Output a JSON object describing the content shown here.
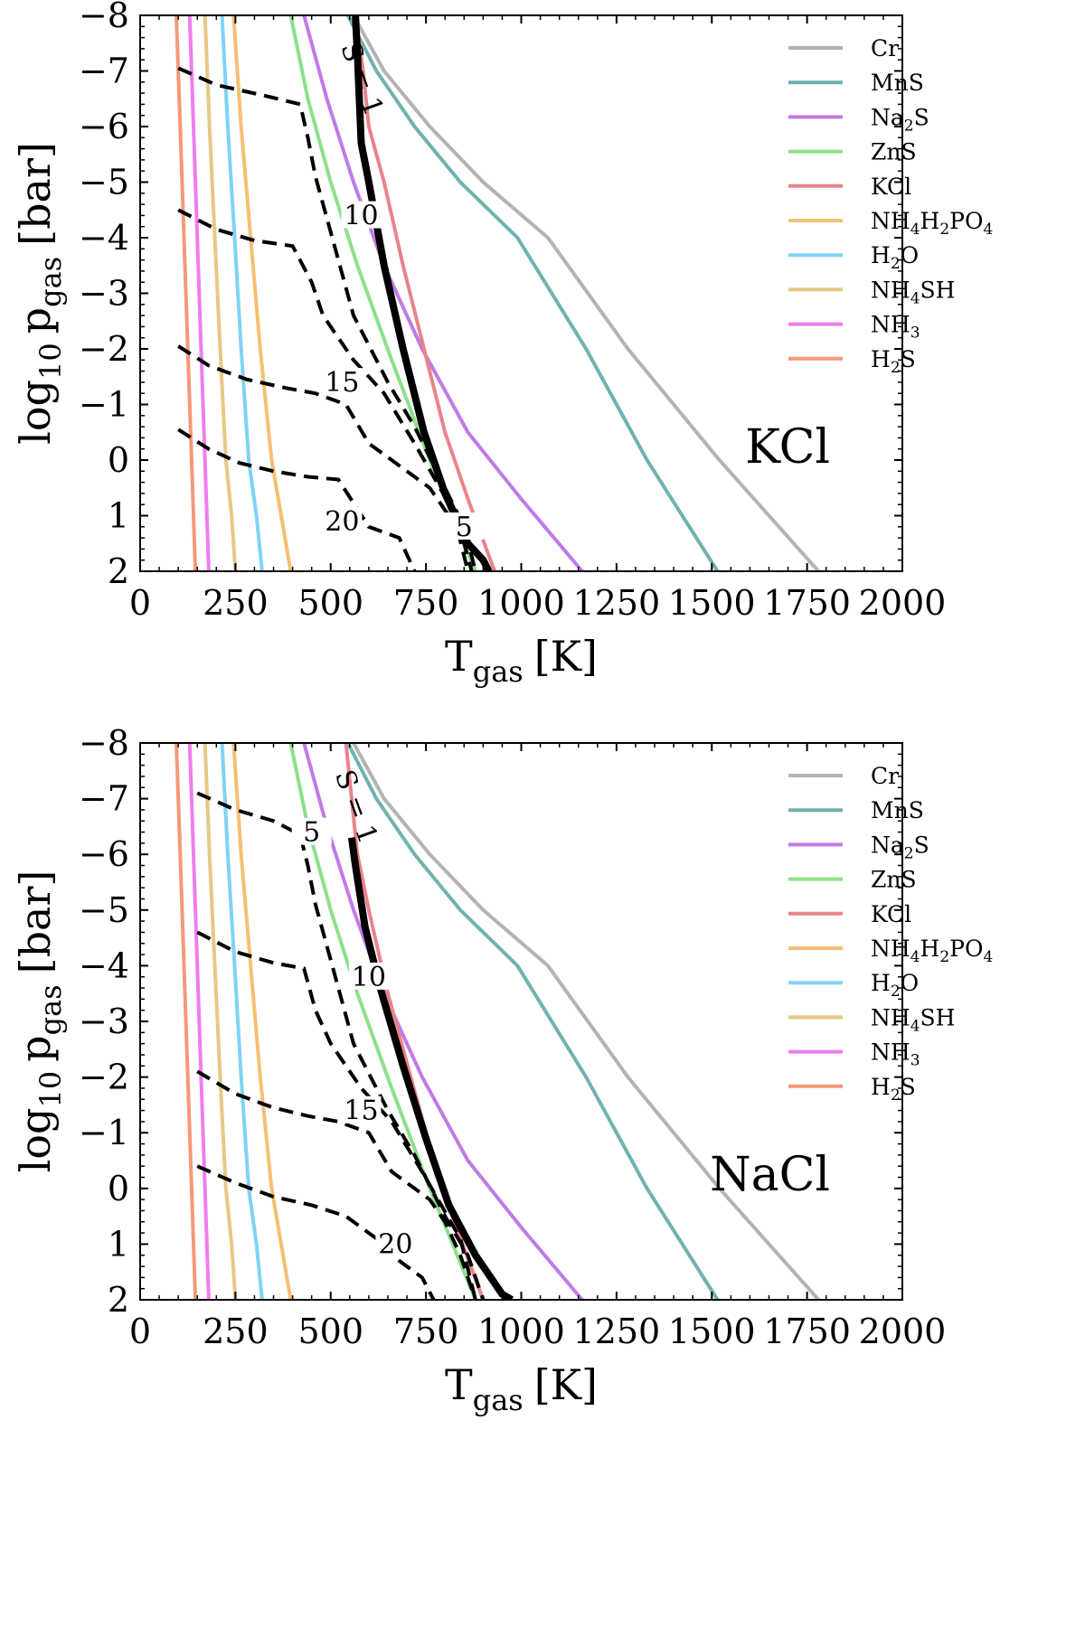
{
  "chart_data": [
    {
      "type": "line",
      "panel_label": "KCl",
      "xlabel": {
        "main": "T",
        "sub": "gas",
        "unit": "[K]"
      },
      "ylabel": {
        "main": "log",
        "base": "10",
        "var": "p",
        "sub": "gas",
        "unit": "[bar]"
      },
      "xlim": [
        0,
        2000
      ],
      "ylim": [
        2,
        -8
      ],
      "xticks": [
        "0",
        "250",
        "500",
        "750",
        "1000",
        "1250",
        "1500",
        "1750",
        "2000"
      ],
      "yticks": [
        "−8",
        "−7",
        "−6",
        "−5",
        "−4",
        "−3",
        "−2",
        "−1",
        "0",
        "1",
        "2"
      ],
      "legend_position": "upper right",
      "series": [
        {
          "name": "Cr",
          "name_parts": [
            "Cr"
          ],
          "color": "#b3b3b3",
          "x": [
            560,
            640,
            760,
            900,
            1070,
            1280,
            1520,
            1780
          ],
          "y": [
            -8,
            -7,
            -6,
            -5,
            -4,
            -2,
            0,
            2
          ]
        },
        {
          "name": "MnS",
          "name_parts": [
            "MnS"
          ],
          "color": "#6fb3b0",
          "x": [
            545,
            620,
            720,
            840,
            990,
            1170,
            1330,
            1515
          ],
          "y": [
            -8,
            -7,
            -6,
            -5,
            -4,
            -2,
            0,
            2
          ]
        },
        {
          "name": "Na2S",
          "name_parts": [
            "Na",
            "2",
            "S"
          ],
          "color": "#c07be6",
          "x": [
            430,
            490,
            560,
            640,
            740,
            860,
            1000,
            1160
          ],
          "y": [
            -8,
            -6.5,
            -5,
            -3.5,
            -2,
            -0.5,
            0.7,
            2
          ]
        },
        {
          "name": "ZnS",
          "name_parts": [
            "ZnS"
          ],
          "color": "#8de08a",
          "x": [
            395,
            440,
            500,
            570,
            660,
            760,
            880
          ],
          "y": [
            -8,
            -6.5,
            -5,
            -3.5,
            -1.8,
            0,
            2
          ]
        },
        {
          "name": "KCl",
          "name_parts": [
            "KCl"
          ],
          "color": "#e8848a",
          "x": [
            565,
            585,
            600,
            640,
            690,
            745,
            800,
            860,
            930
          ],
          "y": [
            -8,
            -7,
            -6,
            -5,
            -3.5,
            -2,
            -0.5,
            0.7,
            2
          ]
        },
        {
          "name": "NH4H2PO4",
          "name_parts": [
            "NH",
            "4",
            "H",
            "2",
            "PO",
            "4"
          ],
          "color": "#f5bf72",
          "x": [
            245,
            265,
            290,
            315,
            345,
            370,
            395
          ],
          "y": [
            -8,
            -6,
            -4,
            -2,
            0,
            1,
            2
          ]
        },
        {
          "name": "H2O",
          "name_parts": [
            "H",
            "2",
            "O"
          ],
          "color": "#7fd3f5",
          "x": [
            215,
            230,
            248,
            265,
            285,
            305,
            320
          ],
          "y": [
            -8,
            -6,
            -4,
            -2,
            0,
            1,
            2
          ]
        },
        {
          "name": "NH4SH",
          "name_parts": [
            "NH",
            "4",
            "SH"
          ],
          "color": "#e8c785",
          "x": [
            170,
            182,
            196,
            210,
            225,
            240,
            250
          ],
          "y": [
            -8,
            -6,
            -4,
            -2,
            0,
            1,
            2
          ]
        },
        {
          "name": "NH3",
          "name_parts": [
            "NH",
            "3"
          ],
          "color": "#f07cf0",
          "x": [
            130,
            140,
            150,
            160,
            170,
            180
          ],
          "y": [
            -8,
            -6,
            -4,
            -2,
            0,
            2
          ]
        },
        {
          "name": "H2S",
          "name_parts": [
            "H",
            "2",
            "S"
          ],
          "color": "#f5987a",
          "x": [
            95,
            105,
            115,
            125,
            135,
            145
          ],
          "y": [
            -8,
            -6,
            -4,
            -2,
            0,
            2
          ]
        }
      ],
      "saturation_curve": {
        "x": [
          565,
          570,
          580,
          600,
          640,
          690,
          745,
          800,
          860,
          900,
          915
        ],
        "y": [
          -8,
          -7.3,
          -5.7,
          -5,
          -3.5,
          -2,
          -0.5,
          0.6,
          1.5,
          1.8,
          2
        ]
      },
      "contours": [
        {
          "label": "5",
          "x": [
            100,
            200,
            330,
            420,
            440,
            460,
            500,
            560,
            650,
            720,
            800,
            850,
            880
          ],
          "y": [
            -7.05,
            -6.75,
            -6.55,
            -6.4,
            -5.8,
            -5.1,
            -4.1,
            -2.6,
            -1.4,
            -0.6,
            0.5,
            1.2,
            2
          ]
        },
        {
          "label": "10",
          "x": [
            100,
            200,
            300,
            400,
            450,
            480,
            560,
            640,
            720,
            770,
            820,
            860
          ],
          "y": [
            -4.5,
            -4.15,
            -3.95,
            -3.85,
            -3.2,
            -2.6,
            -1.8,
            -1.2,
            -0.3,
            0.3,
            0.9,
            2
          ]
        },
        {
          "label": "15",
          "x": [
            100,
            180,
            280,
            380,
            460,
            540,
            600,
            660,
            700,
            760,
            810,
            850,
            870
          ],
          "y": [
            -2.05,
            -1.7,
            -1.45,
            -1.3,
            -1.2,
            -1.0,
            -0.3,
            0.0,
            0.2,
            0.5,
            1.0,
            1.5,
            2
          ]
        },
        {
          "label": "20",
          "x": [
            100,
            180,
            260,
            350,
            440,
            520,
            600,
            680,
            700,
            720
          ],
          "y": [
            -0.55,
            -0.2,
            0.05,
            0.2,
            0.3,
            0.35,
            1.2,
            1.4,
            1.7,
            2
          ]
        }
      ],
      "contour_labels": [
        {
          "text": "5",
          "x": 850,
          "y": 1.3
        },
        {
          "text": "10",
          "x": 580,
          "y": -4.3
        },
        {
          "text": "15",
          "x": 530,
          "y": -1.3
        },
        {
          "text": "20",
          "x": 530,
          "y": 1.2
        }
      ],
      "s1_label": {
        "text": "S = 1",
        "x": 560,
        "y": -6.8
      }
    },
    {
      "type": "line",
      "panel_label": "NaCl",
      "xlabel": {
        "main": "T",
        "sub": "gas",
        "unit": "[K]"
      },
      "ylabel": {
        "main": "log",
        "base": "10",
        "var": "p",
        "sub": "gas",
        "unit": "[bar]"
      },
      "xlim": [
        0,
        2000
      ],
      "ylim": [
        2,
        -8
      ],
      "xticks": [
        "0",
        "250",
        "500",
        "750",
        "1000",
        "1250",
        "1500",
        "1750",
        "2000"
      ],
      "yticks": [
        "−8",
        "−7",
        "−6",
        "−5",
        "−4",
        "−3",
        "−2",
        "−1",
        "0",
        "1",
        "2"
      ],
      "legend_position": "upper right",
      "series": [
        {
          "name": "Cr",
          "name_parts": [
            "Cr"
          ],
          "color": "#b3b3b3",
          "x": [
            560,
            640,
            760,
            900,
            1070,
            1280,
            1520,
            1780
          ],
          "y": [
            -8,
            -7,
            -6,
            -5,
            -4,
            -2,
            0,
            2
          ]
        },
        {
          "name": "MnS",
          "name_parts": [
            "MnS"
          ],
          "color": "#6fb3b0",
          "x": [
            545,
            620,
            720,
            840,
            990,
            1170,
            1330,
            1515
          ],
          "y": [
            -8,
            -7,
            -6,
            -5,
            -4,
            -2,
            0,
            2
          ]
        },
        {
          "name": "Na2S",
          "name_parts": [
            "Na",
            "2",
            "S"
          ],
          "color": "#c07be6",
          "x": [
            430,
            490,
            560,
            640,
            740,
            860,
            1000,
            1160
          ],
          "y": [
            -8,
            -6.5,
            -5,
            -3.5,
            -2,
            -0.5,
            0.7,
            2
          ]
        },
        {
          "name": "ZnS",
          "name_parts": [
            "ZnS"
          ],
          "color": "#8de08a",
          "x": [
            395,
            440,
            500,
            570,
            660,
            760,
            880
          ],
          "y": [
            -8,
            -6.5,
            -5,
            -3.5,
            -1.8,
            0,
            2
          ]
        },
        {
          "name": "KCl",
          "name_parts": [
            "KCl"
          ],
          "color": "#e8848a",
          "x": [
            540,
            555,
            570,
            600,
            650,
            710,
            770,
            830,
            900
          ],
          "y": [
            -8,
            -7,
            -6,
            -5,
            -3.5,
            -2,
            -0.5,
            0.7,
            2
          ]
        },
        {
          "name": "NH4H2PO4",
          "name_parts": [
            "NH",
            "4",
            "H",
            "2",
            "PO",
            "4"
          ],
          "color": "#f5bf72",
          "x": [
            245,
            265,
            290,
            315,
            345,
            370,
            395
          ],
          "y": [
            -8,
            -6,
            -4,
            -2,
            0,
            1,
            2
          ]
        },
        {
          "name": "H2O",
          "name_parts": [
            "H",
            "2",
            "O"
          ],
          "color": "#7fd3f5",
          "x": [
            215,
            230,
            248,
            265,
            285,
            305,
            320
          ],
          "y": [
            -8,
            -6,
            -4,
            -2,
            0,
            1,
            2
          ]
        },
        {
          "name": "NH4SH",
          "name_parts": [
            "NH",
            "4",
            "SH"
          ],
          "color": "#e8c785",
          "x": [
            170,
            182,
            196,
            210,
            225,
            240,
            250
          ],
          "y": [
            -8,
            -6,
            -4,
            -2,
            0,
            1,
            2
          ]
        },
        {
          "name": "NH3",
          "name_parts": [
            "NH",
            "3"
          ],
          "color": "#f07cf0",
          "x": [
            130,
            140,
            150,
            160,
            170,
            180
          ],
          "y": [
            -8,
            -6,
            -4,
            -2,
            0,
            2
          ]
        },
        {
          "name": "H2S",
          "name_parts": [
            "H",
            "2",
            "S"
          ],
          "color": "#f5987a",
          "x": [
            95,
            105,
            115,
            125,
            135,
            145
          ],
          "y": [
            -8,
            -6,
            -4,
            -2,
            0,
            2
          ]
        }
      ],
      "saturation_curve": {
        "x": [
          555,
          565,
          590,
          630,
          690,
          750,
          810,
          880,
          950,
          975
        ],
        "y": [
          -6.3,
          -5.8,
          -4.7,
          -3.6,
          -2.2,
          -0.9,
          0.3,
          1.2,
          1.9,
          2
        ]
      },
      "contours": [
        {
          "label": "5",
          "x": [
            150,
            250,
            350,
            420,
            440,
            460,
            500,
            560,
            650,
            720,
            800,
            860,
            900
          ],
          "y": [
            -7.1,
            -6.8,
            -6.6,
            -6.35,
            -5.8,
            -5.1,
            -4.1,
            -2.6,
            -1.4,
            -0.6,
            0.5,
            1.2,
            2
          ]
        },
        {
          "label": "10",
          "x": [
            150,
            250,
            350,
            430,
            460,
            500,
            580,
            660,
            740,
            790,
            840,
            880
          ],
          "y": [
            -4.6,
            -4.25,
            -4.05,
            -3.95,
            -3.2,
            -2.6,
            -1.8,
            -1.2,
            -0.3,
            0.3,
            0.9,
            2
          ]
        },
        {
          "label": "15",
          "x": [
            150,
            250,
            350,
            440,
            520,
            600,
            660,
            720,
            760,
            800,
            840,
            880
          ],
          "y": [
            -2.1,
            -1.7,
            -1.45,
            -1.3,
            -1.2,
            -1.0,
            -0.3,
            0.0,
            0.2,
            0.6,
            1.2,
            2
          ]
        },
        {
          "label": "20",
          "x": [
            150,
            250,
            350,
            450,
            540,
            620,
            680,
            740,
            770
          ],
          "y": [
            -0.4,
            -0.1,
            0.15,
            0.3,
            0.5,
            0.9,
            1.3,
            1.6,
            2
          ]
        }
      ],
      "contour_labels": [
        {
          "text": "5",
          "x": 450,
          "y": -6.3
        },
        {
          "text": "10",
          "x": 600,
          "y": -3.7
        },
        {
          "text": "15",
          "x": 580,
          "y": -1.3
        },
        {
          "text": "20",
          "x": 670,
          "y": 1.1
        }
      ],
      "s1_label": {
        "text": "S = 1",
        "x": 545,
        "y": -6.8
      }
    }
  ]
}
